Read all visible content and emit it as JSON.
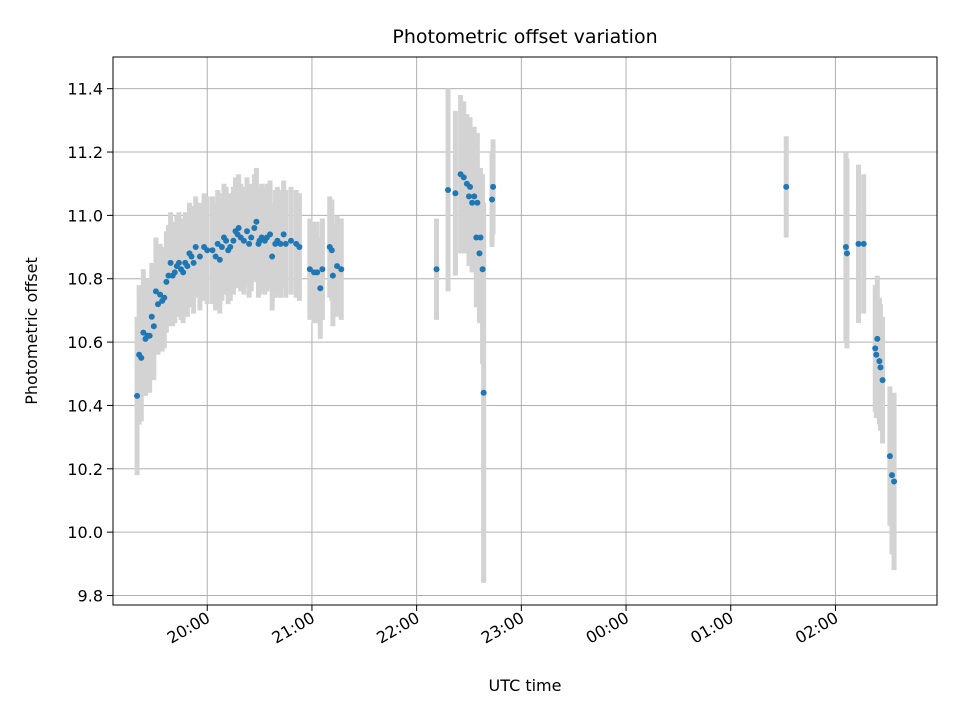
{
  "chart_data": {
    "type": "scatter",
    "title": "Photometric offset variation",
    "xlabel": "UTC time",
    "ylabel": "Photometric offset",
    "x_unit": "UTC hours (values beyond 24 continue past midnight)",
    "xlim": [
      19.1,
      26.97
    ],
    "ylim": [
      9.77,
      11.5
    ],
    "x_ticks": [
      {
        "value": 20,
        "label": "20:00"
      },
      {
        "value": 21,
        "label": "21:00"
      },
      {
        "value": 22,
        "label": "22:00"
      },
      {
        "value": 23,
        "label": "23:00"
      },
      {
        "value": 24,
        "label": "00:00"
      },
      {
        "value": 25,
        "label": "01:00"
      },
      {
        "value": 26,
        "label": "02:00"
      }
    ],
    "y_ticks": [
      {
        "value": 9.8,
        "label": "9.8"
      },
      {
        "value": 10.0,
        "label": "10.0"
      },
      {
        "value": 10.2,
        "label": "10.2"
      },
      {
        "value": 10.4,
        "label": "10.4"
      },
      {
        "value": 10.6,
        "label": "10.6"
      },
      {
        "value": 10.8,
        "label": "10.8"
      },
      {
        "value": 11.0,
        "label": "11.0"
      },
      {
        "value": 11.2,
        "label": "11.2"
      },
      {
        "value": 11.4,
        "label": "11.4"
      }
    ],
    "grid": true,
    "point_color": "#1f77b4",
    "errorbar_color": "#d3d3d3",
    "series": [
      {
        "points": [
          [
            19.33,
            10.43,
            0.25
          ],
          [
            19.35,
            10.56,
            0.22
          ],
          [
            19.37,
            10.55,
            0.2
          ],
          [
            19.39,
            10.63,
            0.2
          ],
          [
            19.41,
            10.61,
            0.18
          ],
          [
            19.43,
            10.62,
            0.18
          ],
          [
            19.45,
            10.62,
            0.18
          ],
          [
            19.47,
            10.68,
            0.17
          ],
          [
            19.49,
            10.65,
            0.17
          ],
          [
            19.51,
            10.76,
            0.17
          ],
          [
            19.53,
            10.72,
            0.16
          ],
          [
            19.55,
            10.75,
            0.16
          ],
          [
            19.57,
            10.73,
            0.16
          ],
          [
            19.59,
            10.74,
            0.16
          ],
          [
            19.61,
            10.79,
            0.16
          ],
          [
            19.63,
            10.81,
            0.16
          ],
          [
            19.65,
            10.85,
            0.16
          ],
          [
            19.67,
            10.81,
            0.16
          ],
          [
            19.69,
            10.82,
            0.16
          ],
          [
            19.71,
            10.84,
            0.16
          ],
          [
            19.73,
            10.85,
            0.16
          ],
          [
            19.75,
            10.83,
            0.16
          ],
          [
            19.77,
            10.82,
            0.16
          ],
          [
            19.79,
            10.85,
            0.16
          ],
          [
            19.81,
            10.84,
            0.16
          ],
          [
            19.83,
            10.88,
            0.16
          ],
          [
            19.85,
            10.87,
            0.16
          ],
          [
            19.87,
            10.85,
            0.16
          ],
          [
            19.89,
            10.9,
            0.16
          ],
          [
            19.93,
            10.87,
            0.17
          ],
          [
            19.97,
            10.9,
            0.17
          ],
          [
            20.0,
            10.89,
            0.17
          ],
          [
            20.05,
            10.89,
            0.17
          ],
          [
            20.08,
            10.87,
            0.17
          ],
          [
            20.1,
            10.91,
            0.17
          ],
          [
            20.12,
            10.86,
            0.17
          ],
          [
            20.14,
            10.9,
            0.17
          ],
          [
            20.16,
            10.93,
            0.17
          ],
          [
            20.18,
            10.92,
            0.17
          ],
          [
            20.2,
            10.89,
            0.17
          ],
          [
            20.22,
            10.9,
            0.17
          ],
          [
            20.25,
            10.92,
            0.17
          ],
          [
            20.27,
            10.95,
            0.17
          ],
          [
            20.29,
            10.94,
            0.17
          ],
          [
            20.3,
            10.96,
            0.17
          ],
          [
            20.32,
            10.93,
            0.17
          ],
          [
            20.35,
            10.92,
            0.17
          ],
          [
            20.38,
            10.95,
            0.17
          ],
          [
            20.4,
            10.91,
            0.17
          ],
          [
            20.42,
            10.93,
            0.17
          ],
          [
            20.45,
            10.96,
            0.17
          ],
          [
            20.47,
            10.98,
            0.17
          ],
          [
            20.49,
            10.91,
            0.17
          ],
          [
            20.5,
            10.92,
            0.17
          ],
          [
            20.52,
            10.93,
            0.17
          ],
          [
            20.55,
            10.92,
            0.17
          ],
          [
            20.57,
            10.93,
            0.17
          ],
          [
            20.6,
            10.94,
            0.17
          ],
          [
            20.62,
            10.87,
            0.17
          ],
          [
            20.65,
            10.91,
            0.17
          ],
          [
            20.67,
            10.92,
            0.17
          ],
          [
            20.7,
            10.91,
            0.17
          ],
          [
            20.73,
            10.94,
            0.17
          ],
          [
            20.75,
            10.91,
            0.17
          ],
          [
            20.8,
            10.92,
            0.17
          ],
          [
            20.85,
            10.91,
            0.17
          ],
          [
            20.88,
            10.9,
            0.17
          ],
          [
            20.98,
            10.83,
            0.16
          ],
          [
            21.02,
            10.82,
            0.16
          ],
          [
            21.05,
            10.82,
            0.16
          ],
          [
            21.08,
            10.77,
            0.16
          ],
          [
            21.1,
            10.83,
            0.16
          ],
          [
            21.17,
            10.9,
            0.16
          ],
          [
            21.19,
            10.89,
            0.16
          ],
          [
            21.2,
            10.81,
            0.16
          ],
          [
            21.24,
            10.84,
            0.16
          ],
          [
            21.28,
            10.83,
            0.16
          ],
          [
            22.19,
            10.83,
            0.16
          ],
          [
            22.3,
            11.08,
            0.32
          ],
          [
            22.37,
            11.07,
            0.26
          ],
          [
            22.42,
            11.13,
            0.25
          ],
          [
            22.45,
            11.12,
            0.24
          ],
          [
            22.48,
            11.1,
            0.22
          ],
          [
            22.5,
            11.06,
            0.22
          ],
          [
            22.51,
            11.09,
            0.22
          ],
          [
            22.53,
            11.04,
            0.22
          ],
          [
            22.55,
            11.06,
            0.22
          ],
          [
            22.57,
            10.93,
            0.22
          ],
          [
            22.58,
            11.04,
            0.22
          ],
          [
            22.6,
            10.88,
            0.22
          ],
          [
            22.61,
            10.93,
            0.22
          ],
          [
            22.63,
            10.83,
            0.3
          ],
          [
            22.64,
            10.44,
            0.6
          ],
          [
            22.72,
            11.05,
            0.15
          ],
          [
            22.73,
            11.09,
            0.15
          ],
          [
            25.53,
            11.09,
            0.16
          ],
          [
            26.1,
            10.9,
            0.3
          ],
          [
            26.11,
            10.88,
            0.3
          ],
          [
            26.22,
            10.91,
            0.25
          ],
          [
            26.27,
            10.91,
            0.22
          ],
          [
            26.38,
            10.58,
            0.2
          ],
          [
            26.39,
            10.56,
            0.2
          ],
          [
            26.4,
            10.61,
            0.2
          ],
          [
            26.42,
            10.54,
            0.2
          ],
          [
            26.43,
            10.52,
            0.2
          ],
          [
            26.45,
            10.48,
            0.2
          ],
          [
            26.52,
            10.24,
            0.22
          ],
          [
            26.54,
            10.18,
            0.25
          ],
          [
            26.56,
            10.16,
            0.28
          ]
        ]
      }
    ]
  }
}
